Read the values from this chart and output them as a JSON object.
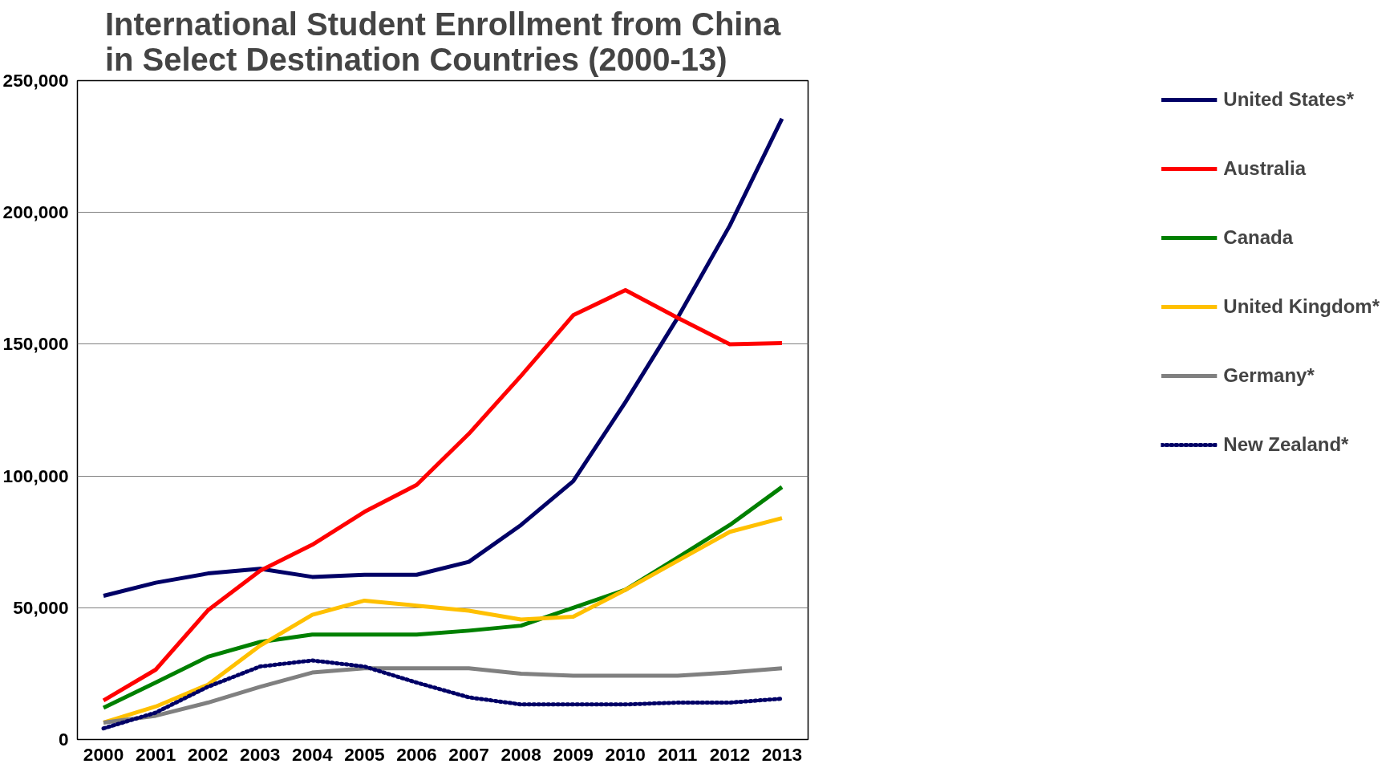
{
  "chart_data": {
    "type": "line",
    "title": "International Student Enrollment from China\nin Select Destination Countries (2000-13)",
    "categories": [
      "2000",
      "2001",
      "2002",
      "2003",
      "2004",
      "2005",
      "2006",
      "2007",
      "2008",
      "2009",
      "2010",
      "2011",
      "2012",
      "2013"
    ],
    "series": [
      {
        "name": "United States*",
        "color": "#000066",
        "values": [
          54500,
          59500,
          63000,
          64800,
          61700,
          62500,
          62500,
          67400,
          81400,
          98000,
          128000,
          160000,
          195000,
          235600
        ]
      },
      {
        "name": "Australia",
        "color": "#ff0000",
        "values": [
          14800,
          26500,
          49000,
          64000,
          73900,
          86400,
          96600,
          116000,
          138000,
          161000,
          170500,
          160000,
          150000,
          150400
        ]
      },
      {
        "name": "Canada",
        "color": "#008000",
        "values": [
          12000,
          21600,
          31400,
          37000,
          39800,
          39800,
          39800,
          41300,
          43200,
          50000,
          56800,
          69000,
          81400,
          95800
        ]
      },
      {
        "name": "United Kingdom*",
        "color": "#ffc000",
        "values": [
          6400,
          12500,
          20800,
          35600,
          47300,
          52700,
          50800,
          48900,
          45500,
          46600,
          56800,
          67800,
          78800,
          84000
        ]
      },
      {
        "name": "Germany*",
        "color": "#808080",
        "values": [
          6400,
          9000,
          14000,
          20000,
          25400,
          27000,
          27000,
          27000,
          25000,
          24200,
          24200,
          24200,
          25400,
          27000
        ]
      },
      {
        "name": "New Zealand*",
        "color": "#000066",
        "line_style": "dotted",
        "values": [
          4200,
          10200,
          20000,
          27700,
          30000,
          27700,
          21600,
          16000,
          13300,
          13300,
          13300,
          14000,
          14000,
          15500
        ]
      }
    ],
    "ylim": [
      0,
      250000
    ],
    "yticks": [
      {
        "value": 0,
        "label": "0"
      },
      {
        "value": 50000,
        "label": "50,000"
      },
      {
        "value": 100000,
        "label": "100,000"
      },
      {
        "value": 150000,
        "label": "150,000"
      },
      {
        "value": 200000,
        "label": "200,000"
      },
      {
        "value": 250000,
        "label": "250,000"
      }
    ],
    "grid": "y",
    "legend": "right",
    "line_style": "solid"
  }
}
